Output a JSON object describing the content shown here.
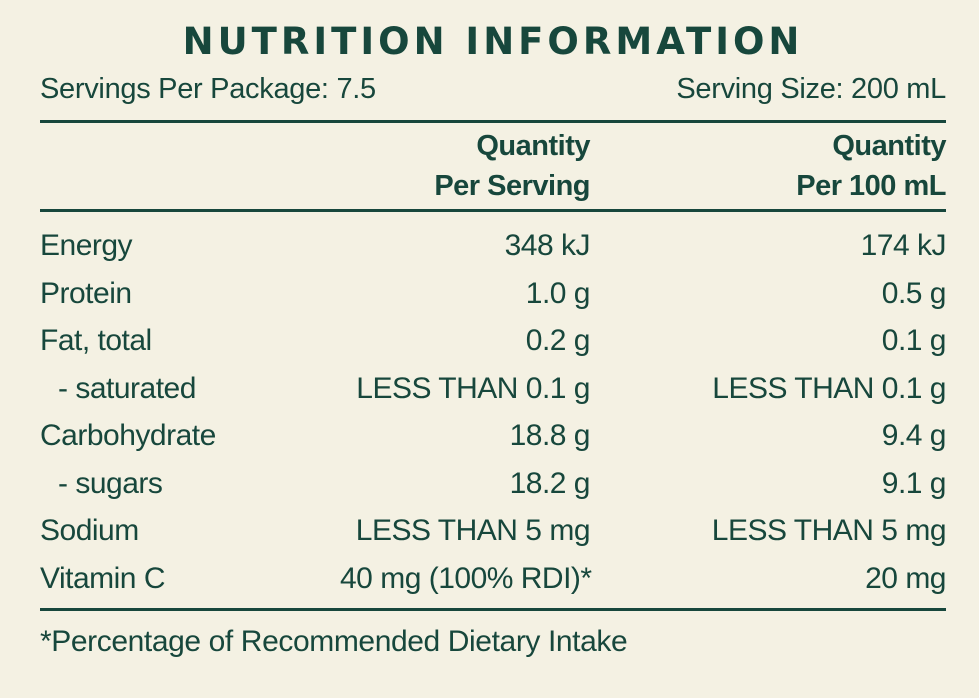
{
  "title": "NUTRITION INFORMATION",
  "servings_per_package": "Servings Per Package: 7.5",
  "serving_size": "Serving Size: 200 mL",
  "headers": {
    "per_serving_line1": "Quantity",
    "per_serving_line2": "Per Serving",
    "per_100_line1": "Quantity",
    "per_100_line2": "Per 100 mL"
  },
  "rows": [
    {
      "name": "Energy",
      "per_serving": "348 kJ",
      "per_100": "174 kJ"
    },
    {
      "name": "Protein",
      "per_serving": "1.0 g",
      "per_100": "0.5 g"
    },
    {
      "name": "Fat, total",
      "per_serving": "0.2 g",
      "per_100": "0.1 g"
    },
    {
      "name": "- saturated",
      "per_serving": "LESS THAN 0.1 g",
      "per_100": "LESS THAN 0.1 g"
    },
    {
      "name": "Carbohydrate",
      "per_serving": "18.8 g",
      "per_100": "9.4 g"
    },
    {
      "name": "- sugars",
      "per_serving": "18.2 g",
      "per_100": "9.1 g"
    },
    {
      "name": "Sodium",
      "per_serving": "LESS THAN 5 mg",
      "per_100": "LESS THAN 5 mg"
    },
    {
      "name": "Vitamin C",
      "per_serving": "40 mg (100% RDI)*",
      "per_100": "20 mg"
    }
  ],
  "footnote": "*Percentage of Recommended Dietary Intake",
  "colors": {
    "background": "#f4f1e3",
    "text": "#17473c"
  }
}
